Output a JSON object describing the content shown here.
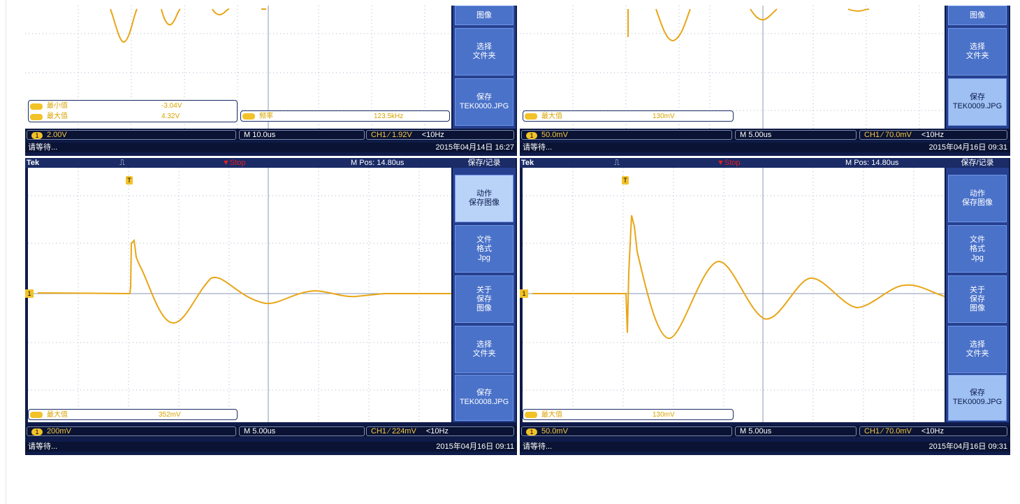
{
  "colors": {
    "trace": "#e8a617",
    "frame": "#0f1c4a",
    "menu": "#4a72c9",
    "grid": "#a8b4cc"
  },
  "icons": {
    "trigger_edge": "trigger-edge-icon",
    "channel_badge": "ch1-badge-icon",
    "trigger_pos": "trigger-position-icon"
  },
  "top_left": {
    "menu": [
      {
        "label": "图像",
        "style": "dark"
      },
      {
        "label": "选择\n文件夹",
        "style": "dark"
      },
      {
        "label": "保存\nTEK0000.JPG",
        "style": "dark"
      }
    ],
    "measurements": [
      {
        "label": "最小值",
        "value": "-3.04V"
      },
      {
        "label": "最大值",
        "value": "4.32V"
      }
    ],
    "freq": {
      "label": "频率",
      "value": "123.5kHz"
    },
    "status": {
      "ch1_badge": "1",
      "volts": "2.00V",
      "timebase": "M 10.0us",
      "trigger": "CH1 ⁄ 1.92V",
      "freq": "<10Hz"
    },
    "message": "请等待...",
    "date": "2015年04月14日 16:27"
  },
  "top_right": {
    "menu": [
      {
        "label": "图像",
        "style": "dark"
      },
      {
        "label": "选择\n文件夹",
        "style": "dark"
      },
      {
        "label": "保存\nTEK0009.JPG",
        "style": "light"
      }
    ],
    "measurements": [
      {
        "label": "最大值",
        "value": "130mV"
      }
    ],
    "status": {
      "ch1_badge": "1",
      "volts": "50.0mV",
      "timebase": "M 5.00us",
      "trigger": "CH1 ⁄ 70.0mV",
      "freq": "<10Hz"
    },
    "message": "请等待...",
    "date": "2015年04月16日 09:31"
  },
  "bottom_left": {
    "header": {
      "brand": "Tek",
      "stop": "Stop",
      "mpos": "M Pos: 14.80us"
    },
    "menu_title": "保存/记录",
    "menu": [
      {
        "label": "动作\n保存图像",
        "style": "pale"
      },
      {
        "label": "文件\n格式\nJpg",
        "style": "dark"
      },
      {
        "label": "关于\n保存\n图像",
        "style": "dark"
      },
      {
        "label": "选择\n文件夹",
        "style": "dark"
      },
      {
        "label": "保存\nTEK0008.JPG",
        "style": "dark"
      }
    ],
    "measurements": [
      {
        "label": "最大值",
        "value": "352mV"
      }
    ],
    "status": {
      "ch1_badge": "1",
      "volts": "200mV",
      "timebase": "M 5.00us",
      "trigger": "CH1 ⁄ 224mV",
      "freq": "<10Hz"
    },
    "message": "请等待...",
    "date": "2015年04月16日 09:11"
  },
  "bottom_right": {
    "header": {
      "brand": "Tek",
      "stop": "Stop",
      "mpos": "M Pos: 14.80us"
    },
    "menu_title": "保存/记录",
    "menu": [
      {
        "label": "动作\n保存图像",
        "style": "dark"
      },
      {
        "label": "文件\n格式\nJpg",
        "style": "dark"
      },
      {
        "label": "关于\n保存\n图像",
        "style": "dark"
      },
      {
        "label": "选择\n文件夹",
        "style": "dark"
      },
      {
        "label": "保存\nTEK0009.JPG",
        "style": "light"
      }
    ],
    "measurements": [
      {
        "label": "最大值",
        "value": "130mV"
      }
    ],
    "status": {
      "ch1_badge": "1",
      "volts": "50.0mV",
      "timebase": "M 5.00us",
      "trigger": "CH1 ⁄ 70.0mV",
      "freq": "<10Hz"
    },
    "message": "请等待...",
    "date": "2015年04月16日 09:31"
  }
}
